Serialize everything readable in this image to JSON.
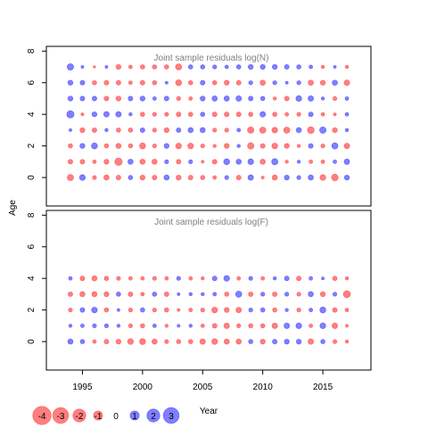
{
  "chart_data": [
    {
      "type": "scatter",
      "title": "Joint sample residuals log(N)",
      "ylabel": "Age",
      "xlim": [
        1992,
        2019
      ],
      "ylim": [
        -1.8,
        8.3
      ],
      "yticks": [
        "0",
        "2",
        "4",
        "6",
        "8"
      ],
      "xticks": [
        "1995",
        "2000",
        "2005",
        "2010",
        "2015"
      ],
      "years": [
        1994,
        1995,
        1996,
        1997,
        1998,
        1999,
        2000,
        2001,
        2002,
        2003,
        2004,
        2005,
        2006,
        2007,
        2008,
        2009,
        2010,
        2011,
        2012,
        2013,
        2014,
        2015,
        2016,
        2017
      ],
      "ages": [
        0,
        1,
        2,
        3,
        4,
        5,
        6,
        7
      ],
      "residuals": [
        [
          -1.4,
          1.2,
          -0.6,
          -1.0,
          -0.8,
          0.7,
          -0.9,
          -0.8,
          1.0,
          -0.9,
          -0.8,
          -0.7,
          -0.5,
          0.6,
          -0.8,
          1.1,
          -0.3,
          -1.0,
          0.9,
          0.6,
          1.0,
          -1.2,
          -1.6,
          0.9
        ],
        [
          -0.8,
          -0.8,
          -0.5,
          -0.9,
          -2.0,
          1.0,
          -1.0,
          -1.0,
          0.6,
          -0.8,
          0.6,
          -0.3,
          -0.8,
          1.3,
          1.0,
          1.2,
          -1.0,
          1.4,
          -0.4,
          0.4,
          -0.5,
          -0.5,
          0.5,
          1.1
        ],
        [
          -0.7,
          0.9,
          1.3,
          -0.7,
          -1.0,
          -0.7,
          -1.3,
          -0.6,
          0.9,
          -1.2,
          -1.2,
          -0.6,
          -0.4,
          -0.9,
          0.4,
          -1.5,
          -0.8,
          -1.2,
          -0.9,
          -0.4,
          0.8,
          -0.6,
          1.4,
          -1.1
        ],
        [
          0.3,
          -0.9,
          -0.8,
          0.4,
          -0.7,
          -0.7,
          0.8,
          -0.6,
          -0.9,
          0.8,
          1.0,
          1.0,
          -0.6,
          -0.6,
          0.5,
          -1.5,
          -1.4,
          -1.2,
          -1.4,
          1.0,
          -1.6,
          1.5,
          -0.9,
          0.4
        ],
        [
          1.9,
          -0.3,
          0.9,
          1.1,
          1.1,
          0.4,
          -0.7,
          -0.6,
          -0.6,
          -0.8,
          -0.7,
          0.7,
          -0.8,
          -0.8,
          -0.8,
          -0.7,
          1.1,
          -0.7,
          -0.5,
          -0.6,
          0.8,
          -0.5,
          -0.3,
          0.5
        ],
        [
          0.9,
          0.8,
          0.8,
          -0.8,
          -0.9,
          0.8,
          0.9,
          0.5,
          0.8,
          -0.6,
          -0.5,
          0.9,
          1.0,
          1.0,
          1.1,
          0.8,
          0.7,
          -0.4,
          -0.8,
          1.2,
          1.1,
          0.4,
          -0.6,
          0.5
        ],
        [
          0.9,
          0.8,
          -0.7,
          -0.8,
          -0.8,
          -0.5,
          -0.8,
          -0.7,
          0.3,
          -1.3,
          -0.7,
          0.8,
          -0.7,
          -0.9,
          -0.8,
          0.6,
          -1.0,
          0.6,
          0.3,
          0.6,
          -1.0,
          -0.9,
          1.0,
          -1.1
        ],
        [
          1.5,
          0.3,
          -0.2,
          0.3,
          -0.9,
          -0.5,
          -0.7,
          -0.7,
          -0.7,
          -1.4,
          0.7,
          0.7,
          0.6,
          0.5,
          0.7,
          0.9,
          0.9,
          0.9,
          0.8,
          0.7,
          0.5,
          -0.4,
          0.3,
          -0.4
        ]
      ]
    },
    {
      "type": "scatter",
      "title": "Joint sample residuals log(F)",
      "ylabel": "Age",
      "xlim": [
        1992,
        2019
      ],
      "ylim": [
        -1.8,
        8.3
      ],
      "yticks": [
        "0",
        "2",
        "4",
        "6",
        "8"
      ],
      "xticks": [
        "1995",
        "2000",
        "2005",
        "2010",
        "2015"
      ],
      "years": [
        1994,
        1995,
        1996,
        1997,
        1998,
        1999,
        2000,
        2001,
        2002,
        2003,
        2004,
        2005,
        2006,
        2007,
        2008,
        2009,
        2010,
        2011,
        2012,
        2013,
        2014,
        2015,
        2016,
        2017
      ],
      "ages": [
        0,
        1,
        2,
        3,
        4
      ],
      "residuals": [
        [
          1.0,
          0.7,
          -0.5,
          -0.8,
          -0.9,
          -1.2,
          -1.3,
          -1.0,
          -0.6,
          -0.7,
          -0.7,
          -1.1,
          -1.2,
          -1.0,
          -1.0,
          0.7,
          -0.9,
          0.8,
          0.9,
          0.9,
          -1.1,
          0.7,
          -0.6,
          -0.4
        ],
        [
          0.4,
          0.5,
          0.6,
          0.6,
          0.4,
          -0.6,
          -0.7,
          0.5,
          -0.4,
          0.3,
          0.4,
          -0.5,
          -0.8,
          -1.1,
          -0.6,
          -0.7,
          -0.7,
          -1.1,
          1.1,
          1.2,
          -0.5,
          1.2,
          -1.1,
          -0.3
        ],
        [
          -0.6,
          0.8,
          1.2,
          -0.7,
          0.3,
          -0.6,
          0.7,
          -0.6,
          -0.7,
          -0.3,
          -0.5,
          -0.6,
          -1.2,
          -0.9,
          -1.1,
          0.6,
          0.7,
          -0.7,
          0.4,
          -0.6,
          0.5,
          1.3,
          -0.8,
          -0.5
        ],
        [
          -0.8,
          -1.0,
          -1.0,
          -0.9,
          0.7,
          -0.8,
          -0.5,
          0.7,
          -0.8,
          0.3,
          0.4,
          0.4,
          0.5,
          -0.7,
          1.4,
          -0.8,
          0.6,
          -0.8,
          0.6,
          -0.6,
          1.0,
          -0.9,
          0.6,
          -1.8
        ],
        [
          0.5,
          -0.8,
          -1.0,
          -0.7,
          -0.6,
          -0.5,
          -0.5,
          -0.6,
          -0.5,
          0.6,
          -0.5,
          -0.4,
          0.8,
          1.2,
          -0.5,
          0.6,
          -0.5,
          0.4,
          0.8,
          -0.8,
          0.5,
          0.3,
          -0.7,
          -0.4
        ]
      ]
    }
  ],
  "legend": {
    "entries": [
      {
        "label": "-4",
        "value": -4
      },
      {
        "label": "-3",
        "value": -3
      },
      {
        "label": "-2",
        "value": -2
      },
      {
        "label": "-1",
        "value": -1
      },
      {
        "label": "0",
        "value": 0
      },
      {
        "label": "1",
        "value": 1
      },
      {
        "label": "2",
        "value": 2
      },
      {
        "label": "3",
        "value": 3
      }
    ],
    "xlabel": "Year"
  },
  "colors": {
    "negative": "#ff0000",
    "positive": "#0000ff",
    "axis": "#000000",
    "title": "#808080"
  }
}
